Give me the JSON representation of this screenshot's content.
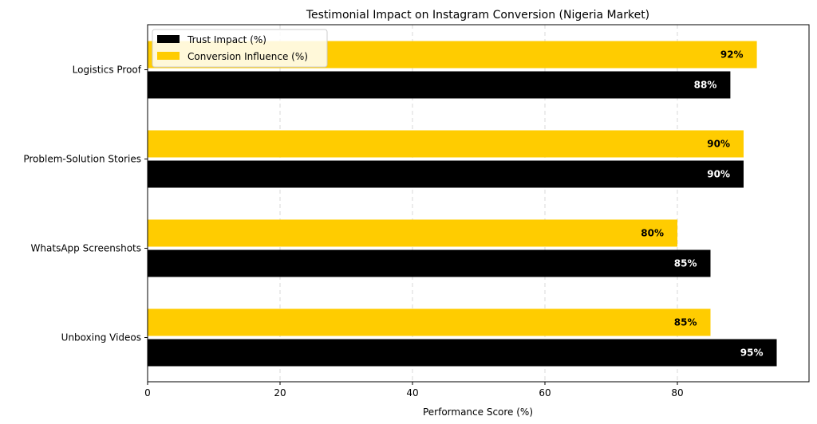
{
  "chart_data": {
    "type": "bar",
    "orientation": "horizontal",
    "title": "Testimonial Impact on Instagram Conversion (Nigeria Market)",
    "xlabel": "Performance Score (%)",
    "ylabel": "",
    "xlim": [
      0,
      100
    ],
    "x_ticks": [
      0,
      20,
      40,
      60,
      80
    ],
    "grid": "vertical dashed",
    "legend_position": "upper-left",
    "categories": [
      "Unboxing Videos",
      "WhatsApp Screenshots",
      "Problem-Solution Stories",
      "Logistics Proof"
    ],
    "series": [
      {
        "name": "Trust Impact (%)",
        "color": "#000000",
        "label_color": "#ffffff",
        "values": [
          95,
          85,
          90,
          88
        ],
        "labels": [
          "95%",
          "85%",
          "90%",
          "88%"
        ]
      },
      {
        "name": "Conversion Influence (%)",
        "color": "#ffcc00",
        "label_color": "#000000",
        "values": [
          85,
          80,
          90,
          92
        ],
        "labels": [
          "85%",
          "80%",
          "90%",
          "92%"
        ]
      }
    ]
  }
}
